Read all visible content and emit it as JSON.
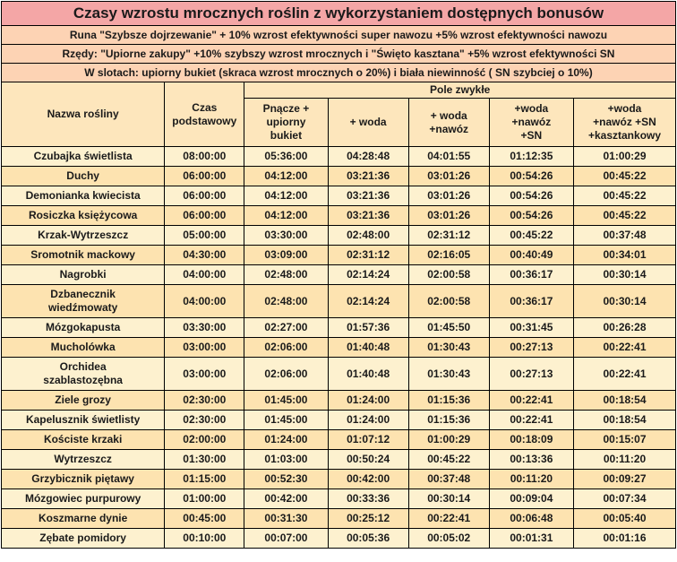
{
  "title": "Czasy wzrostu mrocznych roślin z wykorzystaniem dostępnych bonusów",
  "info_lines": [
    "Runa  \"Szybsze dojrzewanie\" + 10% wzrost efektywności super nawozu +5% wzrost efektywności nawozu",
    "Rzędy: \"Upiorne zakupy\" +10% szybszy wzrost mrocznych i \"Święto kasztana\" +5% wzrost efektywności SN",
    "W slotach: upiorny bukiet (skraca wzrost mrocznych o 20%) i biała niewinność ( SN szybciej o 10%)"
  ],
  "header": {
    "name": "Nazwa rośliny",
    "base": "Czas\npodstawowy",
    "group": "Pole zwykłe",
    "sub": [
      "Pnącze +\nupiorny\nbukiet",
      "+ woda",
      "+ woda\n+nawóz",
      "+woda\n+nawóz\n+SN",
      "+woda\n+nawóz  +SN\n+kasztankowy"
    ]
  },
  "rows": [
    {
      "name": "Czubajka świetlista",
      "t": [
        "08:00:00",
        "05:36:00",
        "04:28:48",
        "04:01:55",
        "01:12:35",
        "01:00:29"
      ]
    },
    {
      "name": "Duchy",
      "t": [
        "06:00:00",
        "04:12:00",
        "03:21:36",
        "03:01:26",
        "00:54:26",
        "00:45:22"
      ]
    },
    {
      "name": "Demonianka kwiecista",
      "t": [
        "06:00:00",
        "04:12:00",
        "03:21:36",
        "03:01:26",
        "00:54:26",
        "00:45:22"
      ]
    },
    {
      "name": "Rosiczka księżycowa",
      "t": [
        "06:00:00",
        "04:12:00",
        "03:21:36",
        "03:01:26",
        "00:54:26",
        "00:45:22"
      ]
    },
    {
      "name": "Krzak-Wytrzeszcz",
      "t": [
        "05:00:00",
        "03:30:00",
        "02:48:00",
        "02:31:12",
        "00:45:22",
        "00:37:48"
      ]
    },
    {
      "name": "Sromotnik mackowy",
      "t": [
        "04:30:00",
        "03:09:00",
        "02:31:12",
        "02:16:05",
        "00:40:49",
        "00:34:01"
      ]
    },
    {
      "name": "Nagrobki",
      "t": [
        "04:00:00",
        "02:48:00",
        "02:14:24",
        "02:00:58",
        "00:36:17",
        "00:30:14"
      ]
    },
    {
      "name": "Dzbanecznik\nwiedźmowaty",
      "t": [
        "04:00:00",
        "02:48:00",
        "02:14:24",
        "02:00:58",
        "00:36:17",
        "00:30:14"
      ]
    },
    {
      "name": "Mózgokapusta",
      "t": [
        "03:30:00",
        "02:27:00",
        "01:57:36",
        "01:45:50",
        "00:31:45",
        "00:26:28"
      ]
    },
    {
      "name": "Mucholówka",
      "t": [
        "03:00:00",
        "02:06:00",
        "01:40:48",
        "01:30:43",
        "00:27:13",
        "00:22:41"
      ]
    },
    {
      "name": "Orchidea\nszablastozębna",
      "t": [
        "03:00:00",
        "02:06:00",
        "01:40:48",
        "01:30:43",
        "00:27:13",
        "00:22:41"
      ]
    },
    {
      "name": "Ziele grozy",
      "t": [
        "02:30:00",
        "01:45:00",
        "01:24:00",
        "01:15:36",
        "00:22:41",
        "00:18:54"
      ]
    },
    {
      "name": "Kapelusznik świetlisty",
      "t": [
        "02:30:00",
        "01:45:00",
        "01:24:00",
        "01:15:36",
        "00:22:41",
        "00:18:54"
      ]
    },
    {
      "name": "Kościste krzaki",
      "t": [
        "02:00:00",
        "01:24:00",
        "01:07:12",
        "01:00:29",
        "00:18:09",
        "00:15:07"
      ]
    },
    {
      "name": "Wytrzeszcz",
      "t": [
        "01:30:00",
        "01:03:00",
        "00:50:24",
        "00:45:22",
        "00:13:36",
        "00:11:20"
      ]
    },
    {
      "name": "Grzybicznik piętawy",
      "t": [
        "01:15:00",
        "00:52:30",
        "00:42:00",
        "00:37:48",
        "00:11:20",
        "00:09:27"
      ]
    },
    {
      "name": "Mózgowiec purpurowy",
      "t": [
        "01:00:00",
        "00:42:00",
        "00:33:36",
        "00:30:14",
        "00:09:04",
        "00:07:34"
      ]
    },
    {
      "name": "Koszmarne dynie",
      "t": [
        "00:45:00",
        "00:31:30",
        "00:25:12",
        "00:22:41",
        "00:06:48",
        "00:05:40"
      ]
    },
    {
      "name": "Zębate pomidory",
      "t": [
        "00:10:00",
        "00:07:00",
        "00:05:36",
        "00:05:02",
        "00:01:31",
        "00:01:16"
      ]
    }
  ],
  "colors": {
    "title_bg": "#f4a6a6",
    "info_bg": "#fdd3b4",
    "header_bg": "#fde6bc",
    "row_light": "#fdf1cf",
    "row_dark": "#fde3b0"
  }
}
